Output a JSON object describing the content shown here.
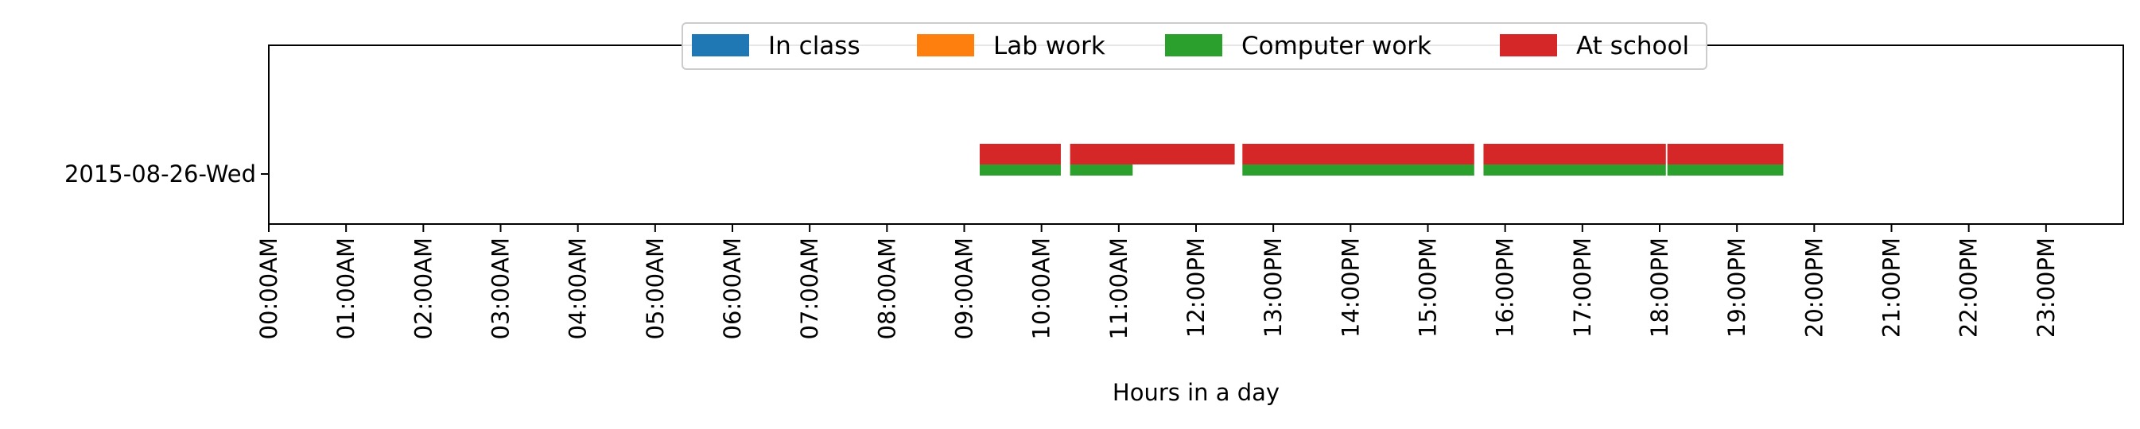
{
  "chart_data": {
    "type": "bar",
    "orientation": "horizontal-timeline",
    "xlabel": "Hours in a day",
    "ylabel": "",
    "xlim": [
      0,
      24
    ],
    "x_ticks": [
      "00:00AM",
      "01:00AM",
      "02:00AM",
      "03:00AM",
      "04:00AM",
      "05:00AM",
      "06:00AM",
      "07:00AM",
      "08:00AM",
      "09:00AM",
      "10:00AM",
      "11:00AM",
      "12:00PM",
      "13:00PM",
      "14:00PM",
      "15:00PM",
      "16:00PM",
      "17:00PM",
      "18:00PM",
      "19:00PM",
      "20:00PM",
      "21:00PM",
      "22:00PM",
      "23:00PM"
    ],
    "categories": [
      "2015-08-26-Wed"
    ],
    "legend_position": "top-center",
    "grid": false,
    "series": [
      {
        "name": "In class",
        "color": "#1f77b4",
        "segments": []
      },
      {
        "name": "Lab work",
        "color": "#ff7f0e",
        "segments": []
      },
      {
        "name": "Computer work",
        "color": "#2ca02c",
        "segments": [
          [
            9.2,
            10.25
          ],
          [
            10.37,
            11.18
          ],
          [
            12.6,
            15.6
          ],
          [
            15.72,
            18.08
          ],
          [
            18.1,
            19.6
          ]
        ]
      },
      {
        "name": "At school",
        "color": "#d62728",
        "segments": [
          [
            9.2,
            10.25
          ],
          [
            10.37,
            12.5
          ],
          [
            12.6,
            15.6
          ],
          [
            15.72,
            18.08
          ],
          [
            18.1,
            19.6
          ]
        ]
      }
    ]
  }
}
